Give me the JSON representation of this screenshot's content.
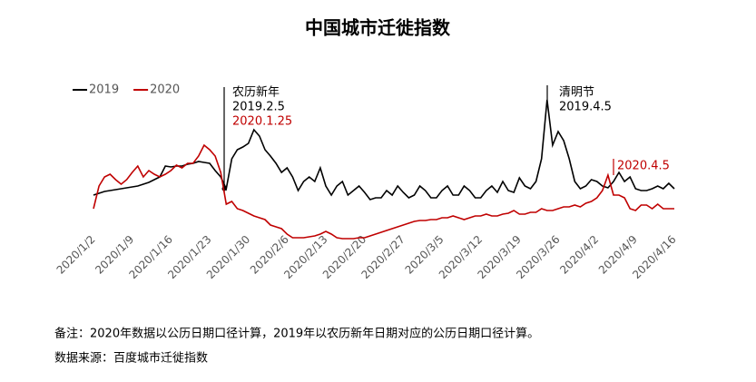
{
  "chart_data": {
    "type": "line",
    "title": "中国城市迁徙指数",
    "categories": [
      "2020/1/2",
      null,
      null,
      null,
      null,
      null,
      null,
      "2020/1/9",
      null,
      null,
      null,
      null,
      null,
      null,
      "2020/1/16",
      null,
      null,
      null,
      null,
      null,
      null,
      "2020/1/23",
      null,
      null,
      null,
      null,
      null,
      null,
      "2020/1/30",
      null,
      null,
      null,
      null,
      null,
      null,
      "2020/2/6",
      null,
      null,
      null,
      null,
      null,
      null,
      "2020/2/13",
      null,
      null,
      null,
      null,
      null,
      null,
      "2020/2/20",
      null,
      null,
      null,
      null,
      null,
      null,
      "2020/2/27",
      null,
      null,
      null,
      null,
      null,
      null,
      "2020/3/5",
      null,
      null,
      null,
      null,
      null,
      null,
      "2020/3/12",
      null,
      null,
      null,
      null,
      null,
      null,
      "2020/3/19",
      null,
      null,
      null,
      null,
      null,
      null,
      "2020/3/26",
      null,
      null,
      null,
      null,
      null,
      null,
      "2020/4/2",
      null,
      null,
      null,
      null,
      null,
      null,
      "2020/4/9",
      null,
      null,
      null,
      null,
      null,
      null,
      "2020/4/16"
    ],
    "series": [
      {
        "name": "2019",
        "color": "#000000",
        "values": [
          5.5,
          5.7,
          5.9,
          6,
          6.1,
          6.2,
          6.3,
          6.4,
          6.5,
          6.7,
          6.9,
          7.2,
          7.5,
          8.7,
          8.6,
          8.7,
          8.7,
          8.9,
          9,
          9.2,
          9.1,
          9,
          8.2,
          7.5,
          6.2,
          9.5,
          10.5,
          10.8,
          11.2,
          12.7,
          12,
          10.5,
          9.8,
          9,
          8,
          8.5,
          7.5,
          6,
          7,
          7.5,
          7,
          8.5,
          6.5,
          5.5,
          6.5,
          7,
          5.5,
          6,
          6.5,
          5.8,
          5,
          5.2,
          5.2,
          6,
          5.5,
          6.5,
          5.8,
          5.2,
          5.5,
          6.5,
          6,
          5.2,
          5.2,
          6,
          6.5,
          5.5,
          5.5,
          6.5,
          6,
          5.2,
          5.2,
          6,
          6.5,
          5.8,
          7,
          6,
          5.8,
          7.4,
          6.5,
          6.2,
          7,
          9.5,
          16,
          11,
          12.5,
          11.5,
          9.5,
          7,
          6.2,
          6.5,
          7.2,
          7,
          6.5,
          6.3,
          7,
          8,
          7,
          7.5,
          6.2,
          6,
          6,
          6.2,
          6.5,
          6.2,
          6.8,
          6.2
        ]
      },
      {
        "name": "2020",
        "color": "#c00000",
        "values": [
          4,
          6.5,
          7.5,
          7.8,
          7.2,
          6.7,
          7.2,
          8,
          8.7,
          7.5,
          8.2,
          7.8,
          7.5,
          7.8,
          8.2,
          8.8,
          8.5,
          9,
          9,
          9.8,
          11,
          10.5,
          9.8,
          8,
          4.5,
          4.8,
          4,
          3.8,
          3.5,
          3.2,
          3,
          2.8,
          2.2,
          2,
          1.8,
          1.2,
          0.8,
          0.8,
          0.8,
          0.9,
          1,
          1.2,
          1.5,
          1.2,
          0.8,
          0.7,
          0.7,
          0.7,
          0.8,
          0.8,
          1,
          1.2,
          1.4,
          1.6,
          1.8,
          2,
          2.2,
          2.4,
          2.6,
          2.7,
          2.7,
          2.8,
          2.8,
          3,
          3,
          3.2,
          3,
          2.8,
          3,
          3.2,
          3.2,
          3.4,
          3.2,
          3.2,
          3.4,
          3.5,
          3.8,
          3.4,
          3.4,
          3.6,
          3.6,
          4,
          3.8,
          3.8,
          4,
          4.2,
          4.2,
          4.4,
          4.2,
          4.6,
          4.8,
          5.2,
          6,
          7.7,
          5.5,
          5.5,
          5.2,
          4,
          3.8,
          4.4,
          4.4,
          4,
          4.5,
          4,
          4,
          4
        ]
      }
    ],
    "annotations": [
      {
        "label": "农历新年",
        "date": "2019.2.5",
        "date_2020": "2020.1.25"
      },
      {
        "label": "清明节",
        "date": "2019.4.5",
        "date_2020": "2020.4.5"
      }
    ],
    "legend": "top-left"
  },
  "notes": [
    "备注：2020年数据以公历日期口径计算，2019年以农历新年日期对应的公历日期口径计算。",
    "数据来源：百度城市迁徙指数"
  ]
}
